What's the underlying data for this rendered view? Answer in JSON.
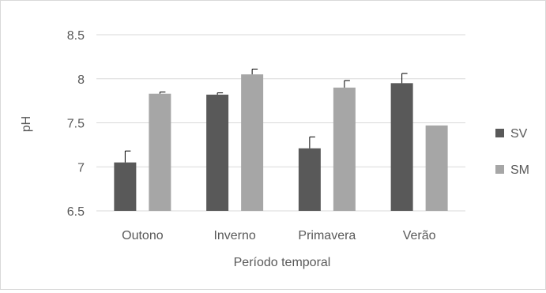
{
  "chart_data": {
    "type": "bar",
    "xlabel": "Período temporal",
    "ylabel": "pH",
    "ylim": [
      6.5,
      8.5
    ],
    "yticks": [
      "6.5",
      "7",
      "7.5",
      "8",
      "8.5"
    ],
    "ytick_values": [
      6.5,
      7.0,
      7.5,
      8.0,
      8.5
    ],
    "categories": [
      "Outono",
      "Inverno",
      "Primavera",
      "Verão"
    ],
    "series": [
      {
        "name": "SV",
        "color": "#595959",
        "values": [
          7.05,
          7.82,
          7.21,
          7.95
        ],
        "errors": [
          0.13,
          0.02,
          0.13,
          0.11
        ]
      },
      {
        "name": "SM",
        "color": "#a6a6a6",
        "values": [
          7.83,
          8.05,
          7.9,
          7.47
        ],
        "errors": [
          0.02,
          0.06,
          0.08,
          0.0
        ]
      }
    ],
    "grid": true,
    "legend_position": "right"
  }
}
